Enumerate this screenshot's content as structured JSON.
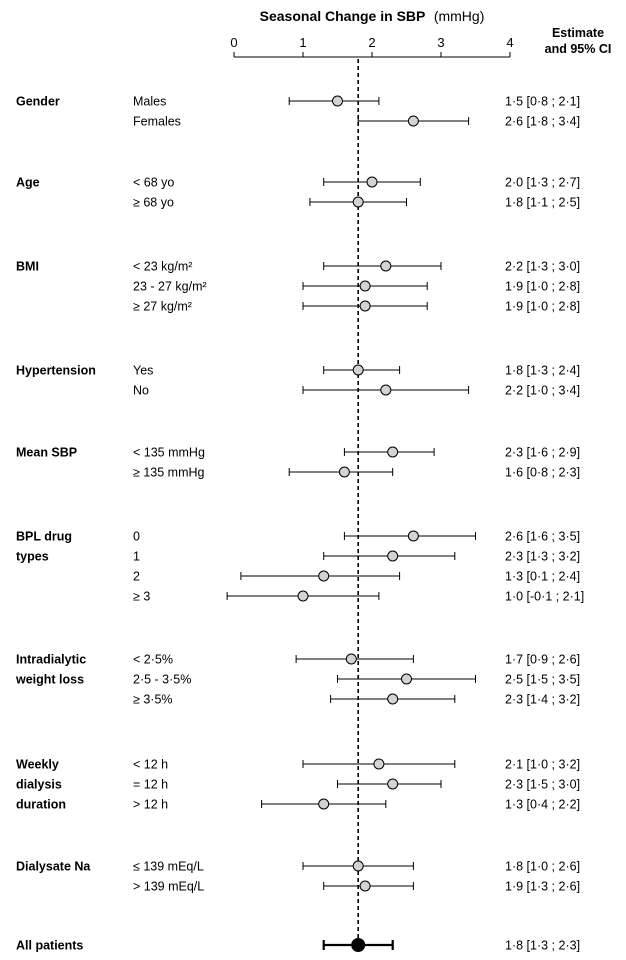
{
  "chart_data": {
    "type": "forest",
    "title": "Seasonal Change in SBP",
    "title_unit": "(mmHg)",
    "xlim": [
      0,
      4
    ],
    "xticks": [
      "0",
      "1",
      "2",
      "3",
      "4"
    ],
    "reference_line": 1.8,
    "estimate_header": [
      "Estimate",
      "and 95% CI"
    ],
    "groups": [
      {
        "label": [
          "Gender"
        ],
        "rows": [
          {
            "label": "Males",
            "estimate": 1.5,
            "ci": [
              0.8,
              2.1
            ],
            "text": "1·5  [0·8 ; 2·1]"
          },
          {
            "label": "Females",
            "estimate": 2.6,
            "ci": [
              1.8,
              3.4
            ],
            "text": "2·6  [1·8 ; 3·4]"
          }
        ]
      },
      {
        "label": [
          "Age"
        ],
        "rows": [
          {
            "label": "< 68 yo",
            "estimate": 2.0,
            "ci": [
              1.3,
              2.7
            ],
            "text": "2·0  [1·3 ; 2·7]"
          },
          {
            "label": "≥ 68 yo",
            "estimate": 1.8,
            "ci": [
              1.1,
              2.5
            ],
            "text": "1·8  [1·1 ; 2·5]"
          }
        ]
      },
      {
        "label": [
          "BMI"
        ],
        "rows": [
          {
            "label": "< 23 kg/m²",
            "estimate": 2.2,
            "ci": [
              1.3,
              3.0
            ],
            "text": "2·2  [1·3 ; 3·0]"
          },
          {
            "label": "23 - 27 kg/m²",
            "estimate": 1.9,
            "ci": [
              1.0,
              2.8
            ],
            "text": "1·9  [1·0 ; 2·8]"
          },
          {
            "label": "≥ 27 kg/m²",
            "estimate": 1.9,
            "ci": [
              1.0,
              2.8
            ],
            "text": "1·9  [1·0 ; 2·8]"
          }
        ]
      },
      {
        "label": [
          "Hypertension"
        ],
        "rows": [
          {
            "label": "Yes",
            "estimate": 1.8,
            "ci": [
              1.3,
              2.4
            ],
            "text": "1·8  [1·3 ; 2·4]"
          },
          {
            "label": "No",
            "estimate": 2.2,
            "ci": [
              1.0,
              3.4
            ],
            "text": "2·2  [1·0 ; 3·4]"
          }
        ]
      },
      {
        "label": [
          "Mean SBP"
        ],
        "rows": [
          {
            "label": "< 135 mmHg",
            "estimate": 2.3,
            "ci": [
              1.6,
              2.9
            ],
            "text": "2·3  [1·6 ; 2·9]"
          },
          {
            "label": "≥ 135 mmHg",
            "estimate": 1.6,
            "ci": [
              0.8,
              2.3
            ],
            "text": "1·6  [0·8 ; 2·3]"
          }
        ]
      },
      {
        "label": [
          "BPL drug",
          "types"
        ],
        "rows": [
          {
            "label": "0",
            "estimate": 2.6,
            "ci": [
              1.6,
              3.5
            ],
            "text": "2·6  [1·6 ; 3·5]"
          },
          {
            "label": "1",
            "estimate": 2.3,
            "ci": [
              1.3,
              3.2
            ],
            "text": "2·3  [1·3 ; 3·2]"
          },
          {
            "label": "2",
            "estimate": 1.3,
            "ci": [
              0.1,
              2.4
            ],
            "text": "1·3  [0·1 ; 2·4]"
          },
          {
            "label": "≥ 3",
            "estimate": 1.0,
            "ci": [
              -0.1,
              2.1
            ],
            "text": "1·0  [-0·1 ; 2·1]"
          }
        ]
      },
      {
        "label": [
          "Intradialytic",
          "weight loss"
        ],
        "rows": [
          {
            "label": "< 2·5%",
            "estimate": 1.7,
            "ci": [
              0.9,
              2.6
            ],
            "text": "1·7  [0·9 ; 2·6]"
          },
          {
            "label": "2·5 - 3·5%",
            "estimate": 2.5,
            "ci": [
              1.5,
              3.5
            ],
            "text": "2·5  [1·5 ; 3·5]"
          },
          {
            "label": "≥ 3·5%",
            "estimate": 2.3,
            "ci": [
              1.4,
              3.2
            ],
            "text": "2·3  [1·4 ; 3·2]"
          }
        ]
      },
      {
        "label": [
          "Weekly",
          "dialysis",
          "duration"
        ],
        "rows": [
          {
            "label": "< 12 h",
            "estimate": 2.1,
            "ci": [
              1.0,
              3.2
            ],
            "text": "2·1  [1·0 ; 3·2]"
          },
          {
            "label": "= 12 h",
            "estimate": 2.3,
            "ci": [
              1.5,
              3.0
            ],
            "text": "2·3  [1·5 ; 3·0]"
          },
          {
            "label": "> 12 h",
            "estimate": 1.3,
            "ci": [
              0.4,
              2.2
            ],
            "text": "1·3  [0·4 ; 2·2]"
          }
        ]
      },
      {
        "label": [
          "Dialysate Na"
        ],
        "rows": [
          {
            "label": "≤ 139 mEq/L",
            "estimate": 1.8,
            "ci": [
              1.0,
              2.6
            ],
            "text": "1·8  [1·0 ; 2·6]"
          },
          {
            "label": "> 139 mEq/L",
            "estimate": 1.9,
            "ci": [
              1.3,
              2.6
            ],
            "text": "1·9  [1·3 ; 2·6]"
          }
        ]
      }
    ],
    "overall": {
      "label": "All patients",
      "estimate": 1.8,
      "ci": [
        1.3,
        2.3
      ],
      "text": "1·8  [1·3 ; 2·3]"
    },
    "colors": {
      "subgroup_marker": "#d3d3d3",
      "overall_marker": "#000000",
      "line": "#000000"
    }
  }
}
